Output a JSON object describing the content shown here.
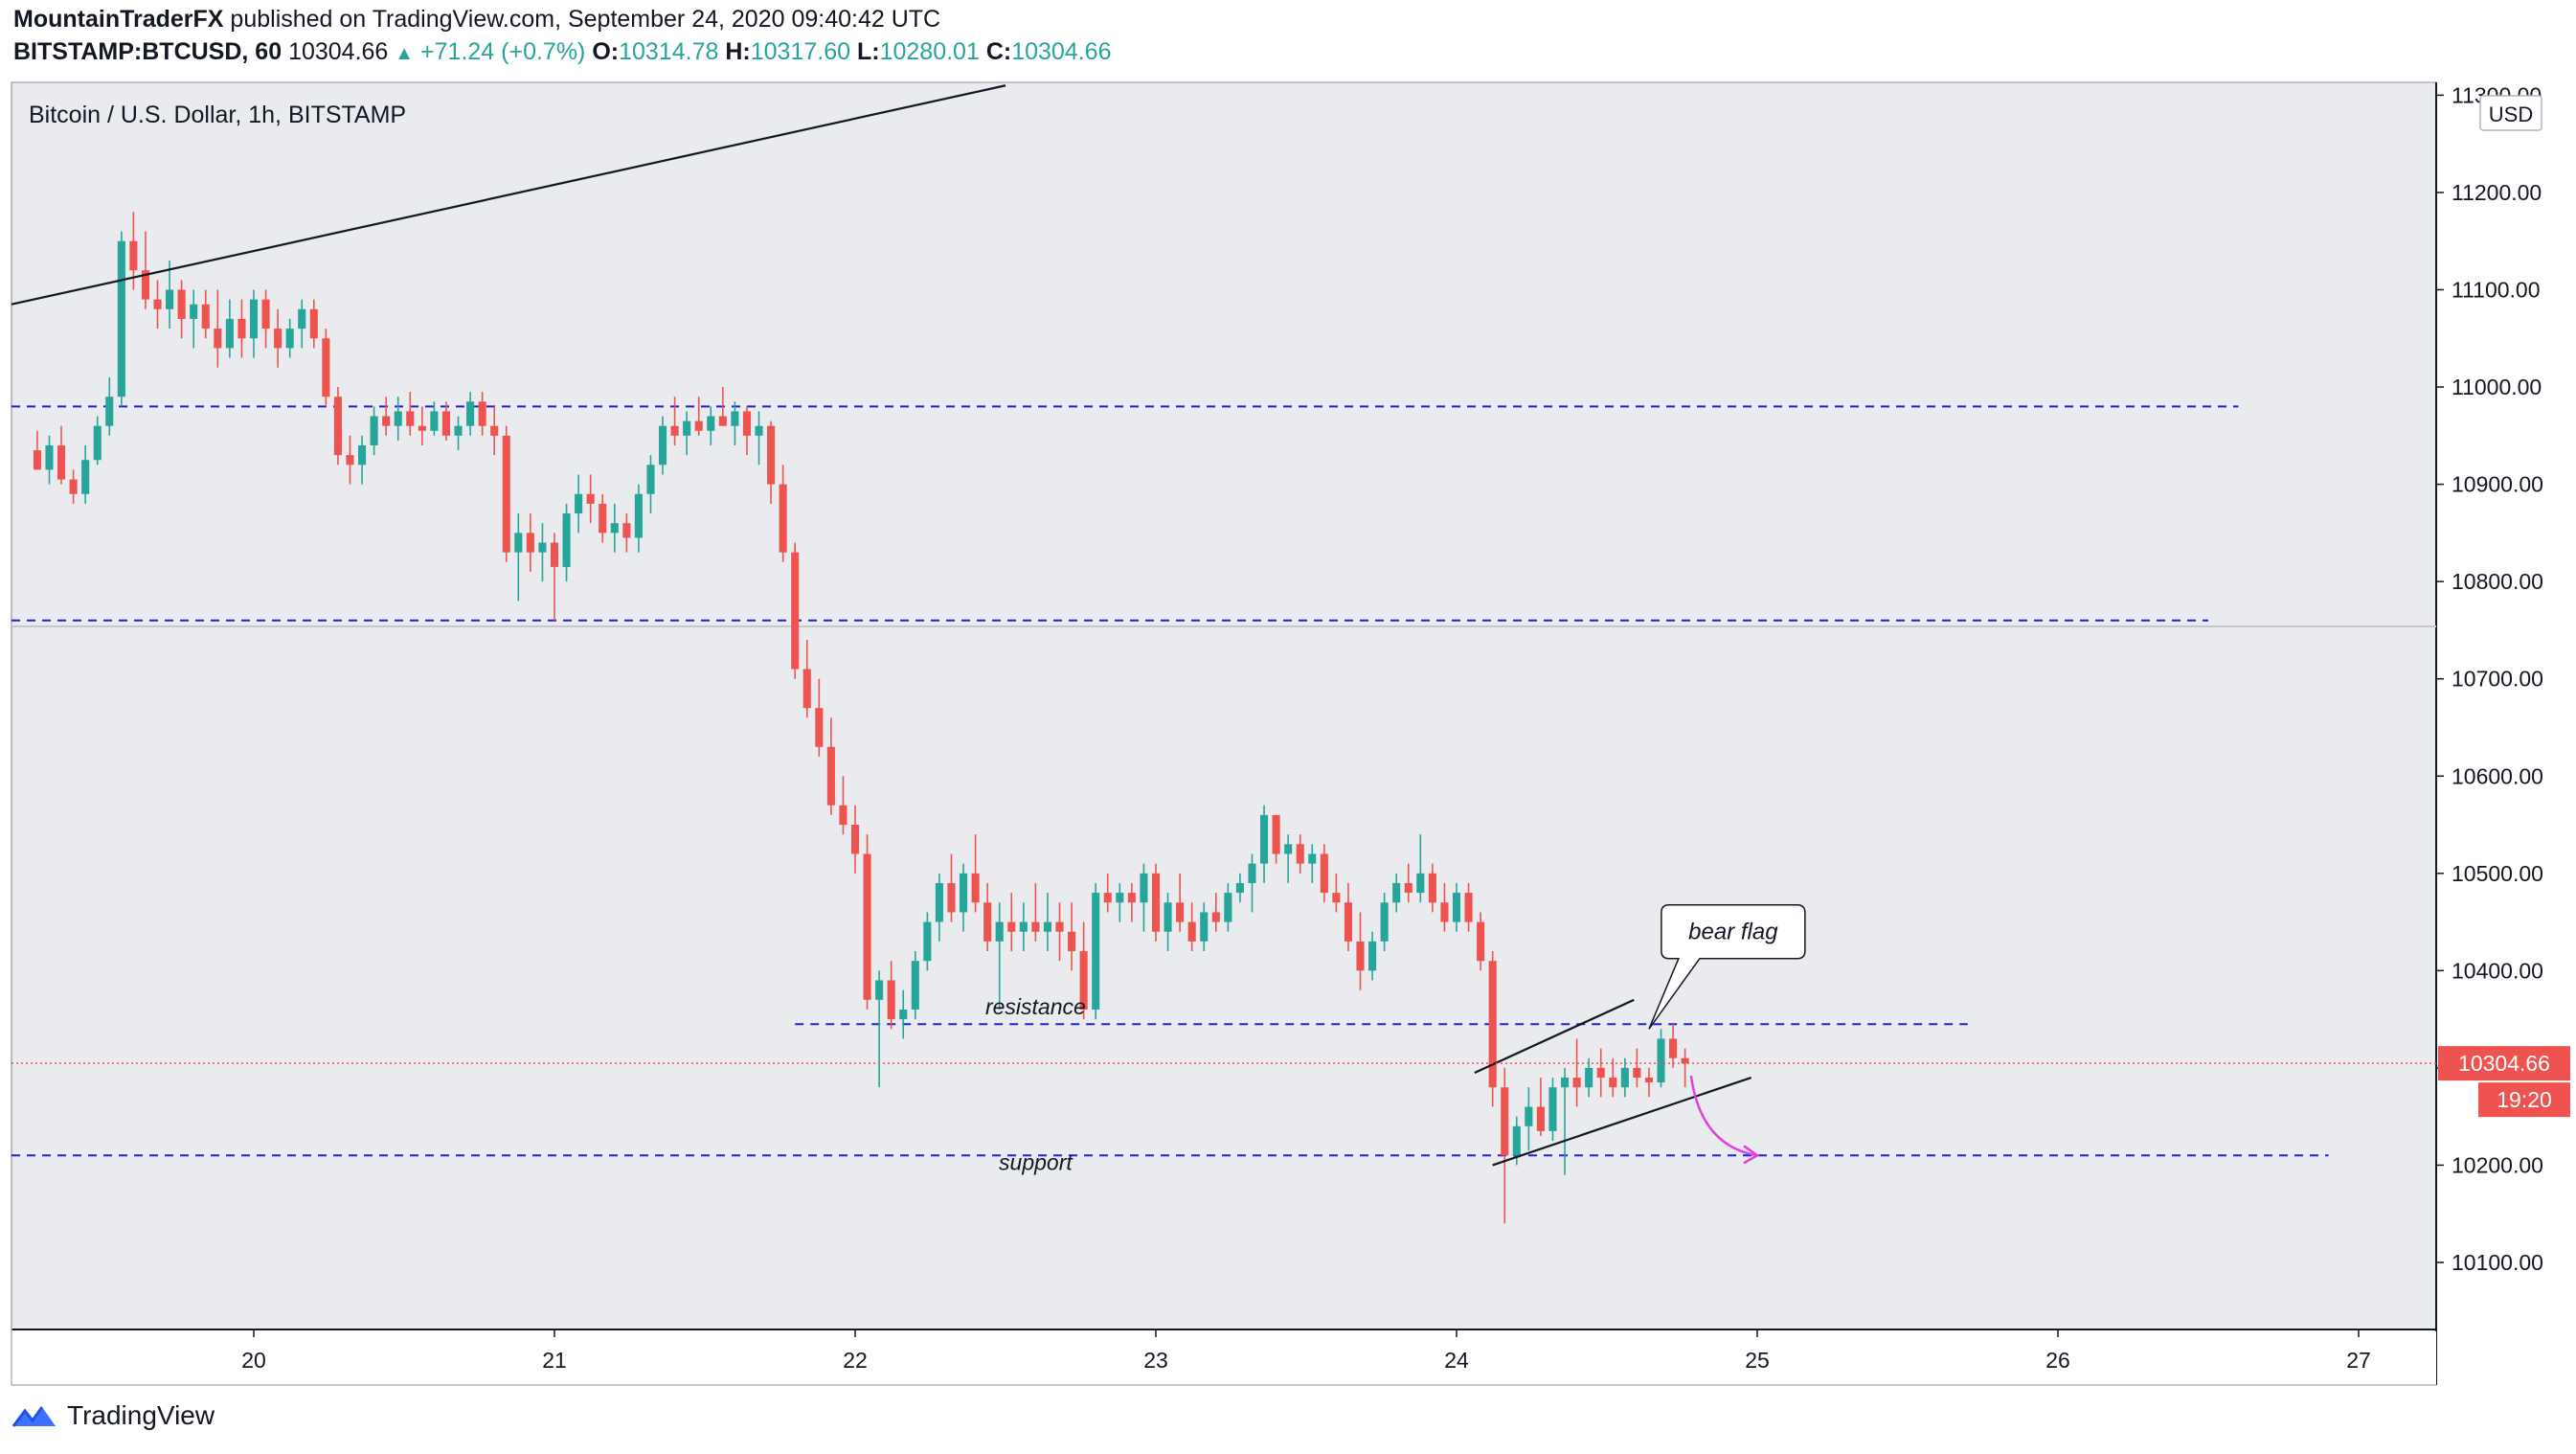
{
  "header": {
    "author": "MountainTraderFX",
    "published": "published on TradingView.com, September 24, 2020 09:40:42 UTC",
    "symbol": "BITSTAMP:BTCUSD, 60",
    "last": "10304.66",
    "change": "+71.24 (+0.7%)",
    "o_label": "O:",
    "o_value": "10314.78",
    "h_label": "H:",
    "h_value": "10317.60",
    "l_label": "L:",
    "l_value": "10280.01",
    "c_label": "C:",
    "c_value": "10304.66"
  },
  "footer": {
    "brand": "TradingView"
  },
  "colors": {
    "up": "#26a69a",
    "down": "#ef5350",
    "levels": "#1f1fd6",
    "arrow": "#e040e0",
    "bg": "#eaebef"
  },
  "chart_data": {
    "type": "candlestick",
    "title": "Bitcoin / U.S. Dollar, 1h, BITSTAMP",
    "currency": "USD",
    "yticks": [
      11300,
      11200,
      11100,
      11000,
      10900,
      10800,
      10700,
      10600,
      10500,
      10400,
      10300,
      10200,
      10100
    ],
    "ytick_labels": [
      "11300.00",
      "11200.00",
      "11100.00",
      "11000.00",
      "10900.00",
      "10800.00",
      "10700.00",
      "10600.00",
      "10500.00",
      "10400.00",
      "10300.00",
      "10200.00",
      "10100.00"
    ],
    "xticks": [
      20,
      21,
      22,
      23,
      24,
      25,
      26,
      27
    ],
    "xtick_labels": [
      "20",
      "21",
      "22",
      "23",
      "24",
      "25",
      "26",
      "27"
    ],
    "last_price": "10304.66",
    "countdown": "19:20",
    "candles": [
      [
        19.28,
        10935,
        10955,
        10915,
        10915
      ],
      [
        19.32,
        10915,
        10950,
        10900,
        10940
      ],
      [
        19.36,
        10940,
        10960,
        10900,
        10905
      ],
      [
        19.4,
        10905,
        10915,
        10880,
        10890
      ],
      [
        19.44,
        10890,
        10940,
        10880,
        10925
      ],
      [
        19.48,
        10925,
        10970,
        10920,
        10960
      ],
      [
        19.52,
        10960,
        11010,
        10950,
        10990
      ],
      [
        19.56,
        10990,
        11160,
        10980,
        11150
      ],
      [
        19.6,
        11150,
        11180,
        11100,
        11120
      ],
      [
        19.64,
        11120,
        11160,
        11080,
        11090
      ],
      [
        19.68,
        11090,
        11110,
        11060,
        11080
      ],
      [
        19.72,
        11080,
        11130,
        11060,
        11100
      ],
      [
        19.76,
        11100,
        11110,
        11050,
        11070
      ],
      [
        19.8,
        11070,
        11100,
        11040,
        11085
      ],
      [
        19.84,
        11085,
        11100,
        11050,
        11060
      ],
      [
        19.88,
        11060,
        11100,
        11020,
        11040
      ],
      [
        19.92,
        11040,
        11090,
        11030,
        11070
      ],
      [
        19.96,
        11070,
        11090,
        11030,
        11050
      ],
      [
        20.0,
        11050,
        11100,
        11030,
        11090
      ],
      [
        20.04,
        11090,
        11100,
        11040,
        11060
      ],
      [
        20.08,
        11060,
        11080,
        11020,
        11040
      ],
      [
        20.12,
        11040,
        11070,
        11030,
        11060
      ],
      [
        20.16,
        11060,
        11090,
        11040,
        11080
      ],
      [
        20.2,
        11080,
        11090,
        11040,
        11050
      ],
      [
        20.24,
        11050,
        11060,
        10980,
        10990
      ],
      [
        20.28,
        10990,
        11000,
        10920,
        10930
      ],
      [
        20.32,
        10930,
        10950,
        10900,
        10920
      ],
      [
        20.36,
        10920,
        10950,
        10900,
        10940
      ],
      [
        20.4,
        10940,
        10980,
        10930,
        10970
      ],
      [
        20.44,
        10970,
        10990,
        10950,
        10960
      ],
      [
        20.48,
        10960,
        10990,
        10945,
        10975
      ],
      [
        20.52,
        10975,
        10995,
        10950,
        10960
      ],
      [
        20.56,
        10960,
        10980,
        10940,
        10955
      ],
      [
        20.6,
        10955,
        10985,
        10950,
        10975
      ],
      [
        20.64,
        10975,
        10985,
        10945,
        10950
      ],
      [
        20.68,
        10950,
        10970,
        10935,
        10960
      ],
      [
        20.72,
        10960,
        10995,
        10950,
        10985
      ],
      [
        20.76,
        10985,
        10995,
        10950,
        10960
      ],
      [
        20.8,
        10960,
        10980,
        10930,
        10950
      ],
      [
        20.84,
        10950,
        10960,
        10820,
        10830
      ],
      [
        20.88,
        10830,
        10870,
        10780,
        10850
      ],
      [
        20.92,
        10850,
        10870,
        10810,
        10830
      ],
      [
        20.96,
        10830,
        10860,
        10800,
        10840
      ],
      [
        21.0,
        10840,
        10850,
        10760,
        10815
      ],
      [
        21.04,
        10815,
        10880,
        10800,
        10870
      ],
      [
        21.08,
        10870,
        10910,
        10850,
        10890
      ],
      [
        21.12,
        10890,
        10910,
        10860,
        10880
      ],
      [
        21.16,
        10880,
        10890,
        10840,
        10850
      ],
      [
        21.2,
        10850,
        10880,
        10830,
        10860
      ],
      [
        21.24,
        10860,
        10870,
        10830,
        10845
      ],
      [
        21.28,
        10845,
        10900,
        10830,
        10890
      ],
      [
        21.32,
        10890,
        10930,
        10870,
        10920
      ],
      [
        21.36,
        10920,
        10970,
        10910,
        10960
      ],
      [
        21.4,
        10960,
        10990,
        10940,
        10950
      ],
      [
        21.44,
        10950,
        10975,
        10930,
        10965
      ],
      [
        21.48,
        10965,
        10990,
        10950,
        10955
      ],
      [
        21.52,
        10955,
        10980,
        10940,
        10970
      ],
      [
        21.56,
        10970,
        11000,
        10960,
        10960
      ],
      [
        21.6,
        10960,
        10985,
        10940,
        10975
      ],
      [
        21.64,
        10975,
        10980,
        10930,
        10950
      ],
      [
        21.68,
        10950,
        10975,
        10920,
        10960
      ],
      [
        21.72,
        10960,
        10965,
        10880,
        10900
      ],
      [
        21.76,
        10900,
        10920,
        10820,
        10830
      ],
      [
        21.8,
        10830,
        10840,
        10700,
        10710
      ],
      [
        21.84,
        10710,
        10740,
        10660,
        10670
      ],
      [
        21.88,
        10670,
        10700,
        10620,
        10630
      ],
      [
        21.92,
        10630,
        10660,
        10560,
        10570
      ],
      [
        21.96,
        10570,
        10600,
        10540,
        10550
      ],
      [
        22.0,
        10550,
        10570,
        10500,
        10520
      ],
      [
        22.04,
        10520,
        10540,
        10360,
        10370
      ],
      [
        22.08,
        10370,
        10400,
        10280,
        10390
      ],
      [
        22.12,
        10390,
        10410,
        10340,
        10350
      ],
      [
        22.16,
        10350,
        10380,
        10330,
        10360
      ],
      [
        22.2,
        10360,
        10420,
        10350,
        10410
      ],
      [
        22.24,
        10410,
        10460,
        10400,
        10450
      ],
      [
        22.28,
        10450,
        10500,
        10430,
        10490
      ],
      [
        22.32,
        10490,
        10520,
        10450,
        10460
      ],
      [
        22.36,
        10460,
        10510,
        10440,
        10500
      ],
      [
        22.4,
        10500,
        10540,
        10460,
        10470
      ],
      [
        22.44,
        10470,
        10490,
        10420,
        10430
      ],
      [
        22.48,
        10430,
        10470,
        10360,
        10450
      ],
      [
        22.52,
        10450,
        10480,
        10420,
        10440
      ],
      [
        22.56,
        10440,
        10470,
        10420,
        10450
      ],
      [
        22.6,
        10450,
        10490,
        10430,
        10440
      ],
      [
        22.64,
        10440,
        10480,
        10420,
        10450
      ],
      [
        22.68,
        10450,
        10470,
        10410,
        10440
      ],
      [
        22.72,
        10440,
        10470,
        10400,
        10420
      ],
      [
        22.76,
        10420,
        10450,
        10350,
        10360
      ],
      [
        22.8,
        10360,
        10490,
        10350,
        10480
      ],
      [
        22.84,
        10480,
        10500,
        10460,
        10470
      ],
      [
        22.88,
        10470,
        10490,
        10450,
        10480
      ],
      [
        22.92,
        10480,
        10490,
        10450,
        10470
      ],
      [
        22.96,
        10470,
        10510,
        10440,
        10500
      ],
      [
        23.0,
        10500,
        10510,
        10430,
        10440
      ],
      [
        23.04,
        10440,
        10480,
        10420,
        10470
      ],
      [
        23.08,
        10470,
        10500,
        10440,
        10450
      ],
      [
        23.12,
        10450,
        10470,
        10420,
        10430
      ],
      [
        23.16,
        10430,
        10470,
        10420,
        10460
      ],
      [
        23.2,
        10460,
        10480,
        10440,
        10450
      ],
      [
        23.24,
        10450,
        10490,
        10440,
        10480
      ],
      [
        23.28,
        10480,
        10500,
        10470,
        10490
      ],
      [
        23.32,
        10490,
        10520,
        10460,
        10510
      ],
      [
        23.36,
        10510,
        10570,
        10490,
        10560
      ],
      [
        23.4,
        10560,
        10560,
        10510,
        10520
      ],
      [
        23.44,
        10520,
        10540,
        10490,
        10530
      ],
      [
        23.48,
        10530,
        10540,
        10500,
        10510
      ],
      [
        23.52,
        10510,
        10530,
        10490,
        10520
      ],
      [
        23.56,
        10520,
        10530,
        10470,
        10480
      ],
      [
        23.6,
        10480,
        10500,
        10460,
        10470
      ],
      [
        23.64,
        10470,
        10490,
        10420,
        10430
      ],
      [
        23.68,
        10430,
        10460,
        10380,
        10400
      ],
      [
        23.72,
        10400,
        10440,
        10390,
        10430
      ],
      [
        23.76,
        10430,
        10480,
        10420,
        10470
      ],
      [
        23.8,
        10470,
        10500,
        10460,
        10490
      ],
      [
        23.84,
        10490,
        10510,
        10470,
        10480
      ],
      [
        23.88,
        10480,
        10540,
        10470,
        10500
      ],
      [
        23.92,
        10500,
        10510,
        10460,
        10470
      ],
      [
        23.96,
        10470,
        10490,
        10440,
        10450
      ],
      [
        24.0,
        10450,
        10490,
        10440,
        10480
      ],
      [
        24.04,
        10480,
        10490,
        10440,
        10450
      ],
      [
        24.08,
        10450,
        10460,
        10400,
        10410
      ],
      [
        24.12,
        10410,
        10420,
        10260,
        10280
      ],
      [
        24.16,
        10280,
        10300,
        10140,
        10210
      ],
      [
        24.2,
        10210,
        10250,
        10200,
        10240
      ],
      [
        24.24,
        10240,
        10280,
        10215,
        10260
      ],
      [
        24.28,
        10260,
        10290,
        10230,
        10235
      ],
      [
        24.32,
        10235,
        10290,
        10225,
        10280
      ],
      [
        24.36,
        10280,
        10300,
        10190,
        10290
      ],
      [
        24.4,
        10290,
        10330,
        10260,
        10280
      ],
      [
        24.44,
        10280,
        10310,
        10270,
        10300
      ],
      [
        24.48,
        10300,
        10320,
        10270,
        10290
      ],
      [
        24.52,
        10290,
        10310,
        10270,
        10280
      ],
      [
        24.56,
        10280,
        10310,
        10270,
        10300
      ],
      [
        24.6,
        10300,
        10320,
        10280,
        10290
      ],
      [
        24.64,
        10290,
        10300,
        10270,
        10285
      ],
      [
        24.68,
        10285,
        10340,
        10280,
        10330
      ],
      [
        24.72,
        10330,
        10345,
        10300,
        10310
      ],
      [
        24.76,
        10310,
        10320,
        10280,
        10304.66
      ]
    ],
    "hlines": [
      {
        "price": 10980,
        "from": 19.0,
        "to": 26.6
      },
      {
        "price": 10760,
        "from": 19.0,
        "to": 26.5
      },
      {
        "price": 10345,
        "from": 21.8,
        "to": 25.7
      },
      {
        "price": 10210,
        "from": 19.0,
        "to": 26.9
      }
    ],
    "trendlines": [
      {
        "x1": 19.0,
        "y1": 11085,
        "x2": 22.5,
        "y2": 11310
      },
      {
        "x1": 24.06,
        "y1": 10295,
        "x2": 24.59,
        "y2": 10370
      },
      {
        "x1": 24.12,
        "y1": 10200,
        "x2": 24.98,
        "y2": 10290
      }
    ],
    "annotations": [
      {
        "text": "resistance",
        "x": 22.6,
        "y": 10355
      },
      {
        "text": "support",
        "x": 22.6,
        "y": 10195
      },
      {
        "text": "bear flag",
        "x": 24.92,
        "y": 10440
      }
    ]
  }
}
